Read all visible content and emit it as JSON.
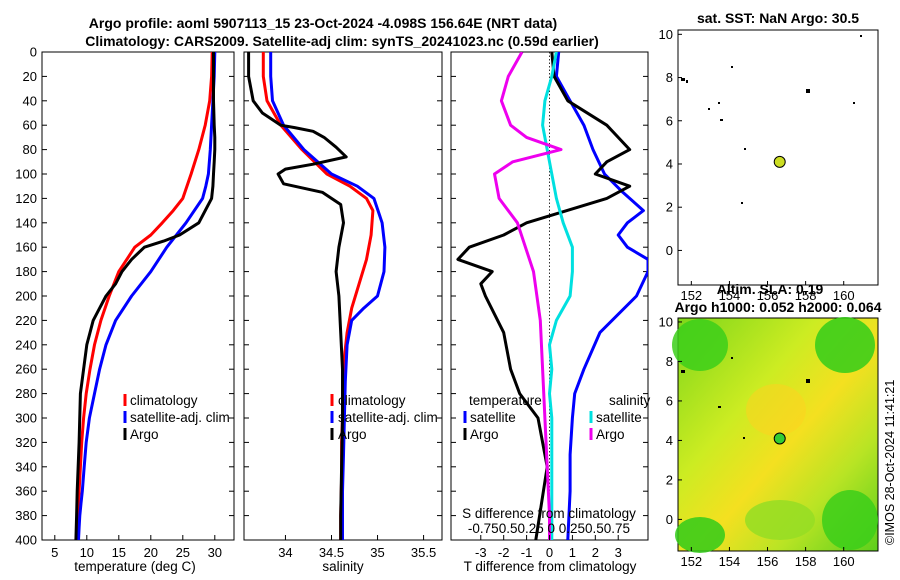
{
  "titles": {
    "line1": "Argo profile: aoml 5907113_15 23-Oct-2024 -4.098S 156.64E (NRT data)",
    "line2": "Climatology: CARS2009. Satellite-adj clim: synTS_20241023.nc (0.59d earlier)"
  },
  "colors": {
    "climatology": "#ff0000",
    "satellite": "#0000ff",
    "argo": "#000000",
    "s_satellite": "#00e0e0",
    "s_argo": "#ee00ee"
  },
  "chart_data": [
    {
      "type": "line",
      "id": "temperature",
      "xlabel": "temperature (deg C)",
      "ylabel": "",
      "xlim": [
        3,
        33
      ],
      "ylim": [
        400,
        0
      ],
      "xticks": [
        "5",
        "10",
        "15",
        "20",
        "25",
        "30"
      ],
      "xtick_values": [
        5,
        10,
        15,
        20,
        25,
        30
      ],
      "yticks": [
        "0",
        "20",
        "40",
        "60",
        "80",
        "100",
        "120",
        "140",
        "160",
        "180",
        "200",
        "220",
        "240",
        "260",
        "280",
        "300",
        "320",
        "340",
        "360",
        "380",
        "400"
      ],
      "ytick_values": [
        0,
        20,
        40,
        60,
        80,
        100,
        120,
        140,
        160,
        180,
        200,
        220,
        240,
        260,
        280,
        300,
        320,
        340,
        360,
        380,
        400
      ],
      "legend": [
        "climatology",
        "satellite-adj. clim",
        "Argo"
      ],
      "series": [
        {
          "name": "climatology",
          "color": "#ff0000",
          "x": [
            29.6,
            29.5,
            29.2,
            28.5,
            27.5,
            26.3,
            25.0,
            23.5,
            21.8,
            20.0,
            17.5,
            15.0,
            13.5,
            12.2,
            11.2,
            10.5,
            9.9,
            9.5,
            9.2,
            9.0,
            8.8,
            8.6,
            8.5,
            8.4
          ],
          "y": [
            0,
            20,
            40,
            60,
            80,
            100,
            120,
            130,
            140,
            150,
            160,
            180,
            200,
            220,
            240,
            260,
            280,
            300,
            320,
            340,
            360,
            380,
            390,
            400
          ]
        },
        {
          "name": "satellite-adj. clim",
          "color": "#0000ff",
          "x": [
            30.0,
            29.9,
            29.7,
            29.5,
            29.3,
            29.0,
            28.6,
            28.1,
            25.5,
            22.5,
            20.0,
            17.0,
            14.5,
            13.0,
            12.0,
            11.2,
            10.4,
            9.9,
            9.6,
            9.3,
            9.1,
            8.9,
            8.8,
            8.7
          ],
          "y": [
            0,
            20,
            40,
            60,
            80,
            100,
            110,
            120,
            140,
            160,
            180,
            200,
            220,
            240,
            260,
            280,
            300,
            320,
            340,
            360,
            370,
            380,
            390,
            400
          ]
        },
        {
          "name": "Argo",
          "color": "#000000",
          "x": [
            29.8,
            29.8,
            29.8,
            29.9,
            30.0,
            30.0,
            29.9,
            29.8,
            29.7,
            29.5,
            27.5,
            24.5,
            22.0,
            19.0,
            17.0,
            15.5,
            14.5,
            13.0,
            12.0,
            11.0,
            10.5,
            10.0,
            9.5,
            9.0,
            8.8,
            8.5,
            8.4,
            8.3
          ],
          "y": [
            0,
            20,
            40,
            60,
            70,
            80,
            90,
            100,
            110,
            120,
            140,
            150,
            155,
            160,
            170,
            180,
            190,
            200,
            210,
            220,
            230,
            240,
            260,
            280,
            320,
            360,
            380,
            400
          ]
        }
      ]
    },
    {
      "type": "line",
      "id": "salinity",
      "xlabel": "salinity",
      "xlim": [
        33.55,
        35.7
      ],
      "ylim": [
        400,
        0
      ],
      "xticks": [
        "34",
        "34.5",
        "35",
        "35.5"
      ],
      "xtick_values": [
        34,
        34.5,
        35,
        35.5
      ],
      "legend": [
        "climatology",
        "satellite-adj. clim",
        "Argo"
      ],
      "series": [
        {
          "name": "climatology",
          "color": "#ff0000",
          "x": [
            33.76,
            33.76,
            33.8,
            33.95,
            34.18,
            34.45,
            34.7,
            34.88,
            34.95,
            34.93,
            34.88,
            34.8,
            34.72,
            34.67,
            34.64,
            34.63,
            34.62,
            34.61,
            34.61,
            34.6,
            34.6
          ],
          "y": [
            0,
            20,
            40,
            60,
            80,
            100,
            110,
            120,
            130,
            150,
            170,
            190,
            210,
            230,
            250,
            280,
            300,
            320,
            350,
            380,
            400
          ]
        },
        {
          "name": "satellite-adj. clim",
          "color": "#0000ff",
          "x": [
            33.84,
            33.84,
            33.86,
            33.98,
            34.2,
            34.5,
            34.78,
            34.96,
            35.05,
            35.08,
            35.07,
            35.0,
            34.85,
            34.72,
            34.67,
            34.65,
            34.64,
            34.63,
            34.62,
            34.62
          ],
          "y": [
            0,
            20,
            40,
            60,
            80,
            100,
            110,
            120,
            140,
            160,
            180,
            200,
            210,
            220,
            240,
            270,
            300,
            330,
            360,
            400
          ]
        },
        {
          "name": "Argo",
          "color": "#000000",
          "x": [
            33.6,
            33.6,
            33.65,
            33.75,
            33.95,
            34.1,
            34.3,
            34.42,
            34.55,
            34.66,
            34.3,
            34.0,
            33.92,
            33.98,
            34.4,
            34.6,
            34.63,
            34.58,
            34.55,
            34.58,
            34.6,
            34.62,
            34.62,
            34.61,
            34.6,
            34.6
          ],
          "y": [
            0,
            20,
            40,
            50,
            60,
            62,
            65,
            70,
            78,
            86,
            92,
            96,
            100,
            108,
            115,
            125,
            140,
            160,
            180,
            200,
            230,
            260,
            300,
            340,
            380,
            400
          ]
        }
      ]
    },
    {
      "type": "line",
      "id": "difference",
      "xlabel": "T difference from climatology",
      "xlabel_top": "S difference from climatology",
      "xlim": [
        -4.3,
        4.3
      ],
      "ylim": [
        400,
        0
      ],
      "xticks": [
        "-3",
        "-2",
        "-1",
        "0",
        "1",
        "2",
        "3"
      ],
      "xtick_values": [
        -3,
        -2,
        -1,
        0,
        1,
        2,
        3
      ],
      "s_ticks": "-0.750.50.25 0 0.250.50.75",
      "legend_t": {
        "head": "temperature",
        "items": [
          "satellite",
          "Argo"
        ]
      },
      "legend_s": {
        "head": "salinity",
        "items": [
          "satellite",
          "Argo"
        ]
      },
      "series": [
        {
          "name": "T satellite",
          "color": "#0000ff",
          "x": [
            0.4,
            0.3,
            0.9,
            1.5,
            1.9,
            2.4,
            3.2,
            4.1,
            3.4,
            3.0,
            3.4,
            4.3,
            4.3,
            3.8,
            2.2,
            1.5,
            1.1,
            1.0,
            0.9,
            0.9,
            0.8
          ],
          "y": [
            0,
            20,
            40,
            60,
            80,
            100,
            115,
            130,
            140,
            150,
            160,
            170,
            180,
            200,
            230,
            260,
            280,
            300,
            330,
            360,
            400
          ]
        },
        {
          "name": "T Argo",
          "color": "#000000",
          "x": [
            0.1,
            0.2,
            0.8,
            2.5,
            3.5,
            2.5,
            2.0,
            3.5,
            2.5,
            -1.0,
            -2.0,
            -3.5,
            -4.0,
            -2.5,
            -3.0,
            -2.8,
            -2.0,
            -1.7,
            -1.3,
            -0.5,
            -0.1,
            -0.6
          ],
          "y": [
            0,
            20,
            40,
            60,
            80,
            90,
            100,
            110,
            120,
            140,
            150,
            160,
            170,
            180,
            190,
            200,
            230,
            260,
            280,
            300,
            340,
            400
          ]
        },
        {
          "name": "S satellite",
          "color": "#00e0e0",
          "x": [
            0.3,
            0.1,
            -0.2,
            -0.3,
            -0.1,
            0.1,
            0.3,
            0.6,
            1.0,
            1.0,
            0.9,
            0.3,
            0.0,
            0.1,
            0.0,
            0.1,
            0.1
          ],
          "y": [
            0,
            20,
            40,
            60,
            80,
            100,
            120,
            140,
            160,
            180,
            200,
            220,
            240,
            260,
            280,
            300,
            400
          ]
        },
        {
          "name": "S Argo",
          "color": "#ee00ee",
          "x": [
            -1.2,
            -1.8,
            -2.1,
            -1.7,
            -1.0,
            0.5,
            -1.6,
            -2.4,
            -2.2,
            -1.4,
            -0.7,
            -0.4,
            -0.3,
            -0.2,
            -0.1,
            0.0,
            0.0
          ],
          "y": [
            0,
            20,
            40,
            60,
            70,
            80,
            90,
            100,
            120,
            140,
            180,
            220,
            260,
            300,
            340,
            380,
            400
          ]
        }
      ]
    },
    {
      "type": "heatmap",
      "id": "sst-map",
      "title": "sat. SST: NaN Argo: 30.5",
      "xticks": [
        "152",
        "154",
        "156",
        "158",
        "160"
      ],
      "xtick_values": [
        152,
        154,
        156,
        158,
        160
      ],
      "yticks": [
        "0",
        "2",
        "4",
        "6",
        "8",
        "10"
      ],
      "ytick_values": [
        0,
        2,
        4,
        6,
        8,
        10
      ],
      "xlim": [
        151.3,
        161.8
      ],
      "ylim": [
        -1.6,
        10.2
      ],
      "marker": {
        "lon": 156.64,
        "lat": 4.098,
        "color": "#ccdd22"
      }
    },
    {
      "type": "heatmap",
      "id": "sla-map",
      "title": "Altim. SLA: 0.19",
      "subtitle": "Argo h1000: 0.052 h2000: 0.064",
      "xticks": [
        "152",
        "154",
        "156",
        "158",
        "160"
      ],
      "xtick_values": [
        152,
        154,
        156,
        158,
        160
      ],
      "yticks": [
        "0",
        "2",
        "4",
        "6",
        "8",
        "10"
      ],
      "ytick_values": [
        0,
        2,
        4,
        6,
        8,
        10
      ],
      "xlim": [
        151.3,
        161.8
      ],
      "ylim": [
        -1.6,
        10.2
      ],
      "marker": {
        "lon": 156.64,
        "lat": 4.098,
        "color": "#33cc33"
      }
    }
  ],
  "watermark": "©IMOS 28-Oct-2024 11:41:21"
}
